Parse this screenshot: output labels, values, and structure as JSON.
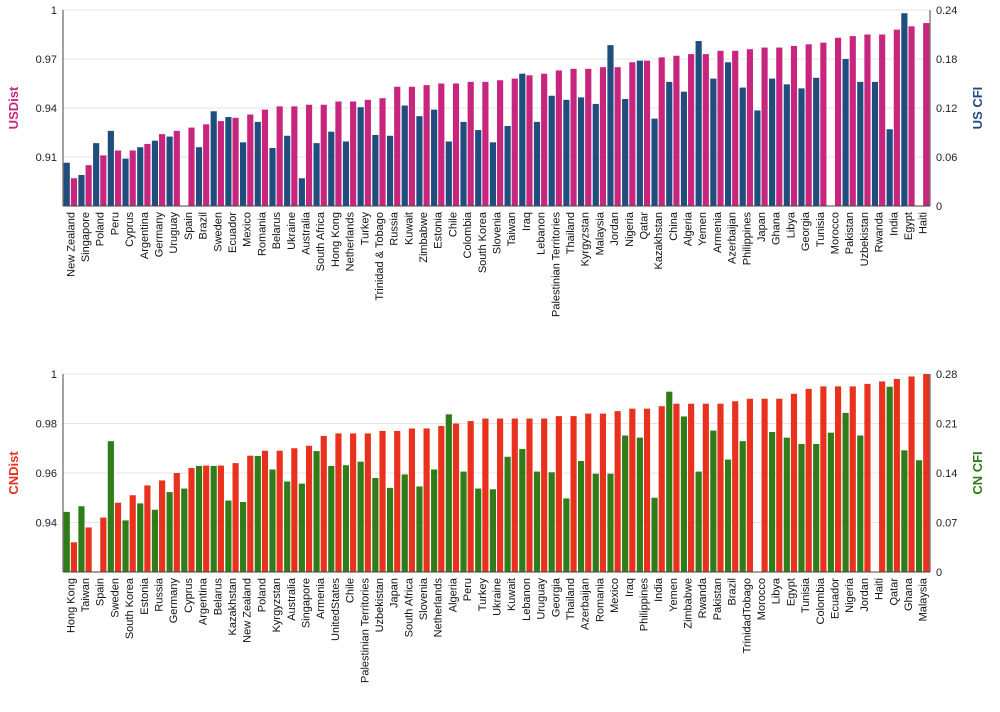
{
  "colors": {
    "us_dist": "#C8267E",
    "us_cfi": "#1F4E7E",
    "cn_dist": "#E8321E",
    "cn_cfi": "#2E7D19",
    "axis": "#444444",
    "grid": "#e4e4e4"
  },
  "chart_data": [
    {
      "type": "bar",
      "y_left_label": "USDist",
      "y_right_label": "US CFI",
      "y_left_lim": [
        0.88,
        1.0
      ],
      "y_left_ticks": [
        "1",
        "0.97",
        "0.94",
        "0.91"
      ],
      "y_left_tick_values": [
        1.0,
        0.97,
        0.94,
        0.91
      ],
      "y_right_lim": [
        0,
        0.24
      ],
      "y_right_ticks": [
        "0.24",
        "0.18",
        "0.12",
        "0.06",
        "0"
      ],
      "y_right_tick_values": [
        0.24,
        0.18,
        0.12,
        0.06,
        0
      ],
      "categories": [
        "New Zealand",
        "Singapore",
        "Poland",
        "Peru",
        "Cyprus",
        "Argentina",
        "Germany",
        "Uruguay",
        "Spain",
        "Brazil",
        "Sweden",
        "Ecuador",
        "Mexico",
        "Romania",
        "Belarus",
        "Ukraine",
        "Australia",
        "South Africa",
        "Hong Kong",
        "Netherlands",
        "Turkey",
        "Trinidad & Tobago",
        "Russia",
        "Kuwait",
        "Zimbabwe",
        "Estonia",
        "Chile",
        "Colombia",
        "South Korea",
        "Slovenia",
        "Taiwan",
        "Iraq",
        "Lebanon",
        "Palestinian Territories",
        "Thailand",
        "Kyrgyzstan",
        "Malaysia",
        "Jordan",
        "Nigeria",
        "Qatar",
        "Kazakhstan",
        "China",
        "Algeria",
        "Yemen",
        "Armenia",
        "Azerbaijan",
        "Philippines",
        "Japan",
        "Ghana",
        "Libya",
        "Georgia",
        "Tunisia",
        "Morocco",
        "Pakistan",
        "Uzbekistan",
        "Rwanda",
        "India",
        "Egypt",
        "Haiti"
      ],
      "series": [
        {
          "name": "USDist",
          "axis": "left",
          "values": [
            0.897,
            0.905,
            0.911,
            0.914,
            0.914,
            0.918,
            0.924,
            0.926,
            0.928,
            0.93,
            0.932,
            0.934,
            0.936,
            0.939,
            0.941,
            0.941,
            0.942,
            0.942,
            0.944,
            0.944,
            0.945,
            0.946,
            0.953,
            0.953,
            0.954,
            0.955,
            0.955,
            0.956,
            0.956,
            0.957,
            0.958,
            0.96,
            0.961,
            0.963,
            0.964,
            0.964,
            0.965,
            0.965,
            0.968,
            0.969,
            0.971,
            0.972,
            0.973,
            0.973,
            0.975,
            0.975,
            0.976,
            0.977,
            0.977,
            0.978,
            0.979,
            0.98,
            0.983,
            0.984,
            0.985,
            0.985,
            0.988,
            0.99,
            0.992
          ]
        },
        {
          "name": "US CFI",
          "axis": "right",
          "values": [
            0.053,
            0.038,
            0.077,
            0.092,
            0.058,
            0.072,
            0.08,
            0.085,
            null,
            0.072,
            0.116,
            0.109,
            0.078,
            0.103,
            0.071,
            0.086,
            0.034,
            0.077,
            0.091,
            0.079,
            0.121,
            0.087,
            0.086,
            0.123,
            0.11,
            0.118,
            0.079,
            0.103,
            0.093,
            0.078,
            0.098,
            0.162,
            0.103,
            0.135,
            0.13,
            0.133,
            0.125,
            0.197,
            0.131,
            0.178,
            0.107,
            0.152,
            0.14,
            0.202,
            0.156,
            0.176,
            0.145,
            0.117,
            0.156,
            0.149,
            0.144,
            0.157,
            null,
            0.18,
            0.152,
            0.152,
            0.094,
            0.236,
            null
          ]
        }
      ]
    },
    {
      "type": "bar",
      "y_left_label": "CNDist",
      "y_right_label": "CN CFI",
      "y_left_lim": [
        0.92,
        1.0
      ],
      "y_left_ticks": [
        "1",
        "0.98",
        "0.96",
        "0.94"
      ],
      "y_left_tick_values": [
        1.0,
        0.98,
        0.96,
        0.94
      ],
      "y_right_lim": [
        0,
        0.28
      ],
      "y_right_ticks": [
        "0.28",
        "0.21",
        "0.14",
        "0.07",
        "0"
      ],
      "y_right_tick_values": [
        0.28,
        0.21,
        0.14,
        0.07,
        0
      ],
      "categories": [
        "Hong Kong",
        "Taiwan",
        "Spain",
        "Sweden",
        "South Korea",
        "Estonia",
        "Russia",
        "Germany",
        "Cyprus",
        "Argentina",
        "Belarus",
        "Kazakhstan",
        "New Zealand",
        "Poland",
        "Kyrgyzstan",
        "Australia",
        "Singapore",
        "Armenia",
        "UnitedStates",
        "Chile",
        "Palestinian Territories",
        "Uzbekistan",
        "Japan",
        "South Africa",
        "Slovenia",
        "Netherlands",
        "Algeria",
        "Peru",
        "Turkey",
        "Ukraine",
        "Kuwait",
        "Lebanon",
        "Uruguay",
        "Georgia",
        "Thailand",
        "Azerbaijan",
        "Romania",
        "Mexico",
        "Iraq",
        "Philippines",
        "India",
        "Yemen",
        "Zimbabwe",
        "Rwanda",
        "Pakistan",
        "Brazil",
        "TrinidadTobago",
        "Morocco",
        "Libya",
        "Egypt",
        "Tunisia",
        "Colombia",
        "Ecuador",
        "Nigeria",
        "Jordan",
        "Haiti",
        "Qatar",
        "Ghana",
        "Malaysia"
      ],
      "series": [
        {
          "name": "CNDist",
          "axis": "left",
          "values": [
            0.932,
            0.938,
            0.942,
            0.948,
            0.951,
            0.955,
            0.957,
            0.96,
            0.962,
            0.963,
            0.963,
            0.964,
            0.967,
            0.969,
            0.969,
            0.97,
            0.971,
            0.975,
            0.976,
            0.976,
            0.976,
            0.977,
            0.977,
            0.978,
            0.978,
            0.979,
            0.98,
            0.981,
            0.982,
            0.982,
            0.982,
            0.982,
            0.982,
            0.983,
            0.983,
            0.984,
            0.984,
            0.985,
            0.986,
            0.986,
            0.987,
            0.988,
            0.988,
            0.988,
            0.988,
            0.989,
            0.99,
            0.99,
            0.99,
            0.992,
            0.994,
            0.995,
            0.995,
            0.995,
            0.996,
            0.997,
            0.998,
            0.999,
            1.0
          ]
        },
        {
          "name": "CN CFI",
          "axis": "right",
          "values": [
            0.085,
            0.093,
            null,
            0.185,
            0.073,
            0.097,
            0.088,
            0.113,
            0.118,
            0.15,
            0.15,
            0.101,
            0.099,
            0.164,
            0.145,
            0.128,
            0.125,
            0.171,
            0.15,
            0.151,
            0.156,
            0.133,
            0.119,
            0.138,
            0.121,
            0.145,
            0.223,
            0.142,
            0.118,
            0.117,
            0.163,
            0.174,
            0.142,
            0.141,
            0.104,
            0.157,
            0.139,
            0.139,
            0.193,
            0.19,
            0.105,
            0.255,
            0.22,
            0.142,
            0.2,
            0.159,
            0.185,
            null,
            0.198,
            0.19,
            0.181,
            0.181,
            0.197,
            0.225,
            0.193,
            null,
            0.262,
            0.172,
            0.158
          ]
        }
      ]
    }
  ]
}
